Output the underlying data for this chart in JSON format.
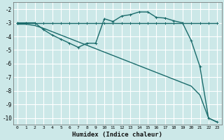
{
  "xlabel": "Humidex (Indice chaleur)",
  "bg_color": "#cce8e8",
  "grid_color": "#ffffff",
  "line_color": "#1a6b6b",
  "xlim": [
    -0.5,
    23.5
  ],
  "ylim": [
    -10.5,
    -1.5
  ],
  "yticks": [
    -2,
    -3,
    -4,
    -5,
    -6,
    -7,
    -8,
    -9,
    -10
  ],
  "xticks": [
    0,
    1,
    2,
    3,
    4,
    5,
    6,
    7,
    8,
    9,
    10,
    11,
    12,
    13,
    14,
    15,
    16,
    17,
    18,
    19,
    20,
    21,
    22,
    23
  ],
  "line1_x": [
    0,
    1,
    2,
    3,
    4,
    5,
    6,
    7,
    8,
    9,
    10,
    11,
    12,
    13,
    14,
    15,
    16,
    17,
    18,
    19,
    20,
    21,
    22,
    23
  ],
  "line1_y": [
    -3.0,
    -3.0,
    -3.0,
    -3.0,
    -3.0,
    -3.0,
    -3.0,
    -3.0,
    -3.0,
    -3.0,
    -3.0,
    -3.0,
    -3.0,
    -3.0,
    -3.0,
    -3.0,
    -3.0,
    -3.0,
    -3.0,
    -3.0,
    -3.0,
    -3.0,
    -3.0,
    -3.0
  ],
  "line2_x": [
    0,
    1,
    2,
    3,
    4,
    5,
    6,
    7,
    8,
    9,
    10,
    11,
    12,
    13,
    14,
    15,
    16,
    17,
    18,
    19,
    20,
    21,
    22,
    23
  ],
  "line2_y": [
    -3.0,
    -3.0,
    -3.0,
    -3.5,
    -3.9,
    -4.2,
    -4.5,
    -4.8,
    -4.5,
    -4.5,
    -2.7,
    -2.9,
    -2.5,
    -2.4,
    -2.2,
    -2.2,
    -2.6,
    -2.65,
    -2.85,
    -3.0,
    -4.3,
    -6.2,
    -10.0,
    -10.3
  ],
  "line3_x": [
    0,
    1,
    2,
    3,
    4,
    5,
    6,
    7,
    8,
    9,
    10,
    11,
    12,
    13,
    14,
    15,
    16,
    17,
    18,
    19,
    20,
    21,
    22,
    23
  ],
  "line3_y": [
    -3.1,
    -3.1,
    -3.2,
    -3.4,
    -3.65,
    -3.9,
    -4.15,
    -4.4,
    -4.65,
    -4.9,
    -5.15,
    -5.4,
    -5.65,
    -5.9,
    -6.15,
    -6.4,
    -6.65,
    -6.9,
    -7.15,
    -7.4,
    -7.65,
    -8.3,
    -10.0,
    -10.3
  ],
  "line_width": 1.0,
  "marker_size": 3
}
